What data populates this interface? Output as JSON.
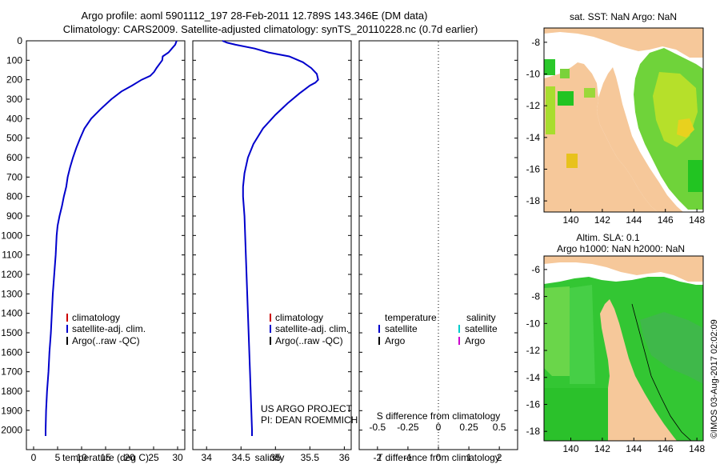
{
  "header": {
    "title_line1": "Argo profile: aoml 5901112_197 28-Feb-2011 12.789S 143.346E (DM data)",
    "title_line2": "Climatology: CARS2009. Satellite-adjusted climatology: synTS_20110228.nc (0.7d earlier)"
  },
  "legend_left": {
    "items": [
      {
        "label": "climatology",
        "color": "#cc0000"
      },
      {
        "label": "satellite-adj. clim.",
        "color": "#0000cc"
      },
      {
        "label": "Argo(..raw -QC)",
        "color": "#000000"
      }
    ]
  },
  "legend_diff": {
    "temperature_heading": "temperature",
    "salinity_heading": "salinity",
    "temperature_items": [
      {
        "label": "satellite",
        "color": "#0000cc"
      },
      {
        "label": "Argo",
        "color": "#000000"
      }
    ],
    "salinity_items": [
      {
        "label": "satellite",
        "color": "#00cccc"
      },
      {
        "label": "Argo",
        "color": "#cc00cc"
      }
    ]
  },
  "credits": {
    "line1": "US ARGO PROJECT",
    "line2": "PI: DEAN ROEMMICH"
  },
  "maps": {
    "sst_title": "sat. SST: NaN Argo: NaN",
    "sla_title1": "Altim. SLA: 0.1",
    "sla_title2": "Argo h1000: NaN h2000: NaN",
    "x_ticks": [
      "140",
      "142",
      "144",
      "146",
      "148"
    ],
    "y_ticks": [
      "-8",
      "-10",
      "-12",
      "-14",
      "-16",
      "-18"
    ],
    "y_ticks_bottom": [
      "-6",
      "-8",
      "-10",
      "-12",
      "-14",
      "-16",
      "-18"
    ],
    "land_color": "#f6c89a",
    "ocean_green": "#22c422"
  },
  "footer": {
    "watermark": "©IMOS 03-Aug-2017 02:02:09"
  },
  "chart_data": [
    {
      "type": "line",
      "name": "temperature-profile",
      "xlabel": "temperature (deg C)",
      "ylabel": "",
      "xlim": [
        -1.5,
        31.5
      ],
      "ylim": [
        2100,
        0
      ],
      "x_ticks": [
        0,
        5,
        10,
        15,
        20,
        25,
        30
      ],
      "y_ticks": [
        0,
        100,
        200,
        300,
        400,
        500,
        600,
        700,
        800,
        900,
        1000,
        1100,
        1200,
        1300,
        1400,
        1500,
        1600,
        1700,
        1800,
        1900,
        2000
      ],
      "series": [
        {
          "name": "satellite-adj. clim.",
          "color": "#0000cc",
          "points": [
            [
              29.8,
              0
            ],
            [
              29.5,
              20
            ],
            [
              28.8,
              40
            ],
            [
              28.1,
              60
            ],
            [
              26.9,
              80
            ],
            [
              26.8,
              100
            ],
            [
              26.2,
              120
            ],
            [
              25.6,
              140
            ],
            [
              25.1,
              160
            ],
            [
              24.3,
              180
            ],
            [
              22.5,
              200
            ],
            [
              20.5,
              230
            ],
            [
              18.3,
              260
            ],
            [
              16.2,
              300
            ],
            [
              14.0,
              350
            ],
            [
              12.0,
              400
            ],
            [
              10.6,
              450
            ],
            [
              9.7,
              500
            ],
            [
              8.9,
              550
            ],
            [
              8.2,
              600
            ],
            [
              7.6,
              650
            ],
            [
              7.1,
              700
            ],
            [
              6.8,
              750
            ],
            [
              6.3,
              800
            ],
            [
              5.9,
              850
            ],
            [
              5.4,
              900
            ],
            [
              5.0,
              950
            ],
            [
              4.8,
              1000
            ],
            [
              4.6,
              1100
            ],
            [
              4.3,
              1200
            ],
            [
              4.0,
              1300
            ],
            [
              3.8,
              1400
            ],
            [
              3.6,
              1500
            ],
            [
              3.3,
              1600
            ],
            [
              3.1,
              1700
            ],
            [
              2.8,
              1800
            ],
            [
              2.6,
              1900
            ],
            [
              2.5,
              2000
            ],
            [
              2.5,
              2030
            ]
          ]
        }
      ]
    },
    {
      "type": "line",
      "name": "salinity-profile",
      "xlabel": "salinity",
      "ylabel": "",
      "xlim": [
        33.8,
        36.1
      ],
      "ylim": [
        2100,
        0
      ],
      "x_ticks": [
        34,
        34.5,
        35,
        35.5,
        36
      ],
      "series": [
        {
          "name": "satellite-adj. clim.",
          "color": "#0000cc",
          "points": [
            [
              34.23,
              0
            ],
            [
              34.3,
              10
            ],
            [
              34.42,
              20
            ],
            [
              34.7,
              40
            ],
            [
              34.9,
              60
            ],
            [
              35.2,
              80
            ],
            [
              35.4,
              110
            ],
            [
              35.52,
              140
            ],
            [
              35.6,
              170
            ],
            [
              35.62,
              200
            ],
            [
              35.58,
              215
            ],
            [
              35.5,
              230
            ],
            [
              35.35,
              270
            ],
            [
              35.18,
              320
            ],
            [
              35.0,
              380
            ],
            [
              34.82,
              450
            ],
            [
              34.68,
              530
            ],
            [
              34.6,
              600
            ],
            [
              34.55,
              680
            ],
            [
              34.53,
              750
            ],
            [
              34.53,
              800
            ],
            [
              34.55,
              900
            ],
            [
              34.57,
              1100
            ],
            [
              34.6,
              1400
            ],
            [
              34.63,
              1700
            ],
            [
              34.66,
              2000
            ],
            [
              34.66,
              2030
            ]
          ]
        }
      ]
    },
    {
      "type": "line",
      "name": "difference-from-climatology",
      "xlabel": "T difference from climatology",
      "xlabel_top": "S difference from climatology",
      "ylabel": "",
      "xlim": [
        -2.6,
        2.6
      ],
      "ylim": [
        2100,
        0
      ],
      "x_ticks": [
        "-2",
        "-1",
        "0",
        "1",
        "2"
      ],
      "x_ticks_top": [
        "-0.5",
        "-0.25",
        "0",
        "0.25",
        "0.5"
      ],
      "series": []
    }
  ]
}
